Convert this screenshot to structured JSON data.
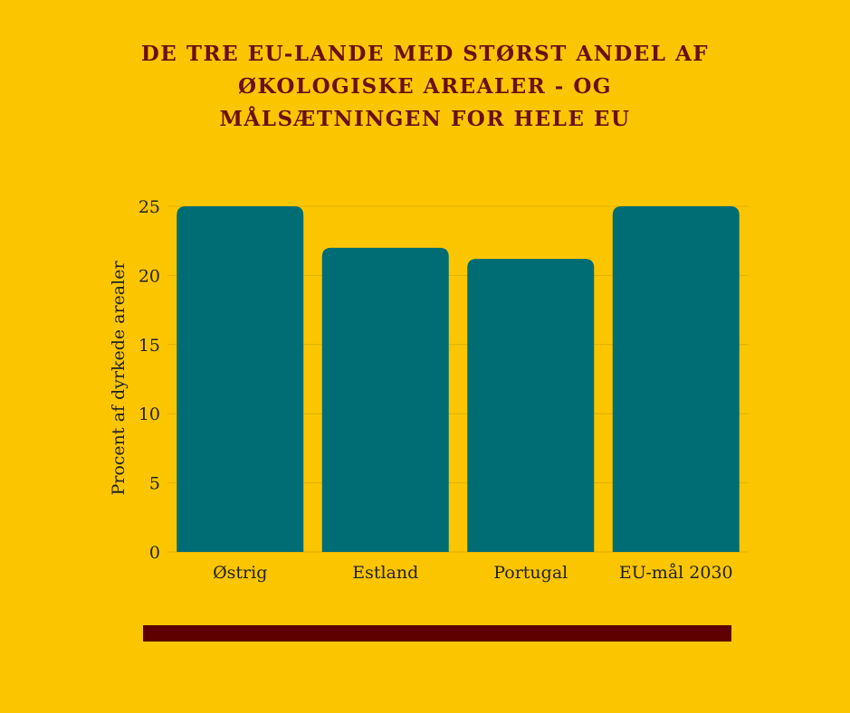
{
  "title_lines": [
    "DE TRE EU-LANDE MED STØRST ANDEL AF",
    "ØKOLOGISKE AREALER -  OG",
    "MÅLSÆTNINGEN FOR HELE EU"
  ],
  "colors": {
    "background": "#FBC600",
    "bars": "#006D75",
    "title": "#6B0F12",
    "grid": "#E0B000",
    "divider_bar": "#5E0000",
    "text": "#222222"
  },
  "chart_data": {
    "type": "bar",
    "categories": [
      "Østrig",
      "Estland",
      "Portugal",
      "EU-mål 2030"
    ],
    "values": [
      25,
      22,
      21.2,
      25
    ],
    "ylabel": "Procent af dyrkede arealer",
    "xlabel": "",
    "ylim": [
      0,
      25
    ],
    "yticks": [
      0,
      5,
      10,
      15,
      20,
      25
    ],
    "grid": true,
    "legend": "none"
  }
}
